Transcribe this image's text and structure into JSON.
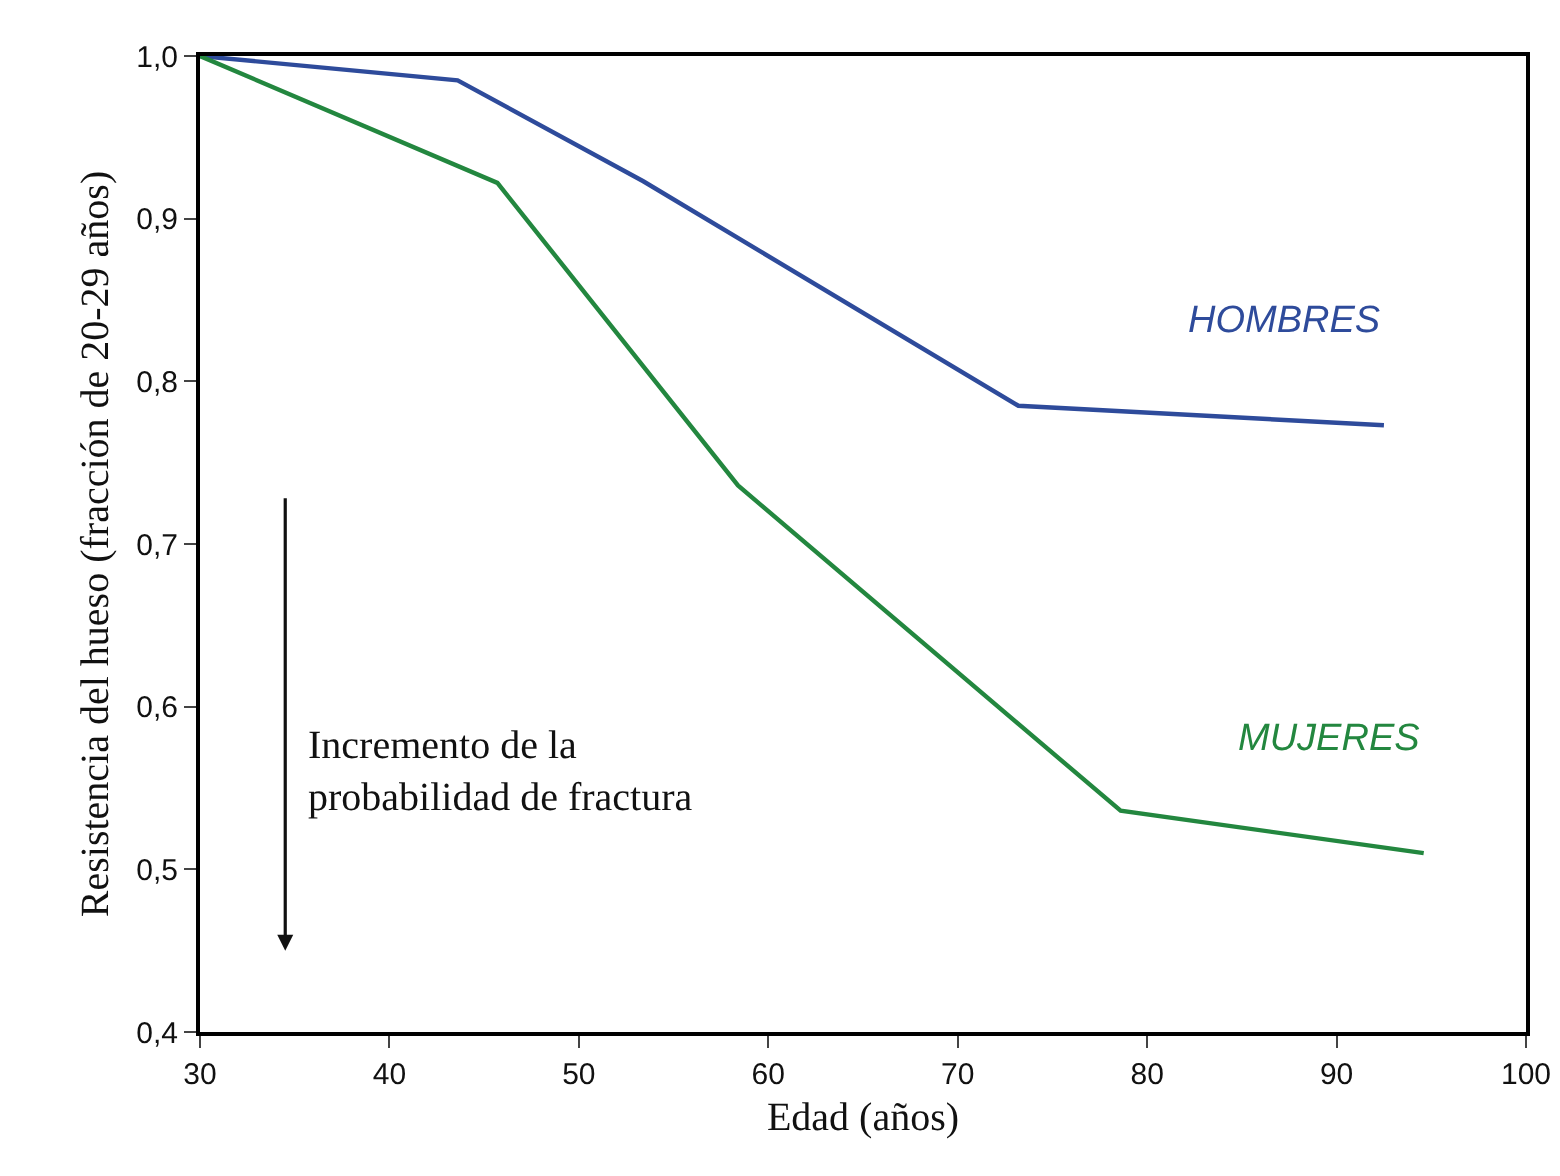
{
  "chart_data": {
    "type": "line",
    "xlabel": "Edad (años)",
    "ylabel": "Resistencia del hueso (fracción de 20-29 años)",
    "series": [
      {
        "name": "HOMBRES",
        "color": "#2e4b9b",
        "x": [
          30,
          43.6,
          53.4,
          73.2,
          92.5
        ],
        "values": [
          1.0,
          0.985,
          0.923,
          0.785,
          0.773
        ]
      },
      {
        "name": "MUJERES",
        "color": "#23873f",
        "x": [
          30,
          45.7,
          58.4,
          78.6,
          94.6
        ],
        "values": [
          1.0,
          0.922,
          0.736,
          0.536,
          0.51
        ]
      }
    ],
    "xlim": [
      30,
      100
    ],
    "xticks": [
      30,
      40,
      50,
      60,
      70,
      80,
      90,
      100
    ],
    "ylim": [
      0.4,
      1.0
    ],
    "yticks": [
      {
        "value": 0.4,
        "label": "0,4"
      },
      {
        "value": 0.5,
        "label": "0,5"
      },
      {
        "value": 0.6,
        "label": "0,6"
      },
      {
        "value": 0.7,
        "label": "0,7"
      },
      {
        "value": 0.8,
        "label": "0,8"
      },
      {
        "value": 0.9,
        "label": "0,9"
      },
      {
        "value": 1.0,
        "label": "1,0"
      }
    ],
    "annotations": [
      "Incremento de la\nprobabilidad de fractura"
    ],
    "grid": false,
    "legend": false,
    "marker": "none",
    "line_style": "solid"
  }
}
